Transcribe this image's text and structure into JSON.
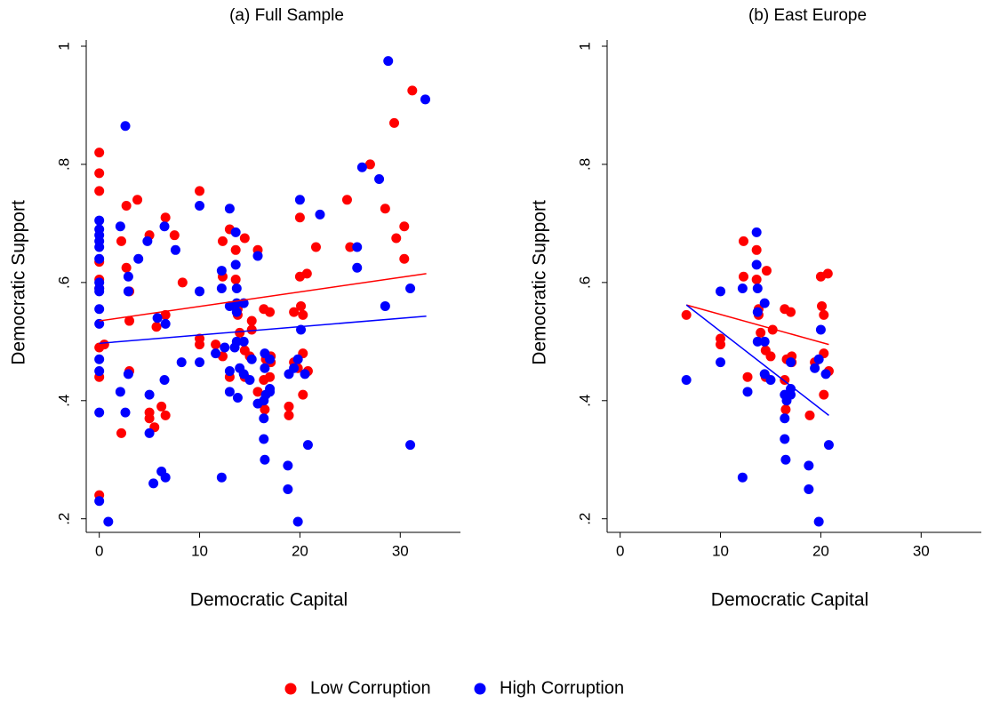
{
  "chart_data": [
    {
      "type": "scatter",
      "title": "(a) Full Sample",
      "x_label": "Democratic Capital",
      "y_label": "Democratic Support",
      "xlim": [
        -1.3,
        36
      ],
      "ylim": [
        0.177,
        1.0
      ],
      "xticks": [
        0,
        10,
        20,
        30
      ],
      "yticks": [
        {
          "value": 0.2,
          "label": ".2"
        },
        {
          "value": 0.4,
          "label": ".4"
        },
        {
          "value": 0.6,
          "label": ".6"
        },
        {
          "value": 0.8,
          "label": ".8"
        },
        1
      ],
      "series": [
        {
          "name": "Low Corruption",
          "color": "#ff0000",
          "x": [
            0,
            0,
            0,
            0,
            0,
            0,
            0,
            0,
            0,
            0.5,
            2.2,
            2.2,
            2.7,
            2.7,
            3,
            3,
            3,
            3.8,
            5,
            5,
            5,
            5.5,
            5.7,
            6.2,
            6.6,
            6.6,
            6.6,
            7.5,
            8.3,
            10,
            10,
            10,
            11.6,
            12.3,
            12.3,
            12.3,
            13,
            13,
            13.6,
            13.6,
            13.8,
            13.8,
            14,
            14.5,
            14.5,
            14.5,
            15,
            15.2,
            15.2,
            15.8,
            15.8,
            16.4,
            16.4,
            16.5,
            16.6,
            17,
            17,
            17.1,
            17.1,
            18.9,
            18.9,
            19.4,
            19.4,
            19.8,
            20,
            20,
            20.1,
            20.3,
            20.3,
            20.3,
            20.7,
            20.8,
            21.6,
            24.7,
            25,
            27,
            28.5,
            29.4,
            29.6,
            30.4,
            30.4,
            31.2
          ],
          "values": [
            0.82,
            0.785,
            0.755,
            0.635,
            0.605,
            0.59,
            0.49,
            0.44,
            0.24,
            0.495,
            0.67,
            0.345,
            0.73,
            0.625,
            0.585,
            0.535,
            0.45,
            0.74,
            0.68,
            0.38,
            0.37,
            0.355,
            0.525,
            0.39,
            0.71,
            0.545,
            0.375,
            0.68,
            0.6,
            0.755,
            0.505,
            0.495,
            0.495,
            0.67,
            0.61,
            0.475,
            0.69,
            0.44,
            0.655,
            0.605,
            0.555,
            0.545,
            0.515,
            0.675,
            0.485,
            0.44,
            0.475,
            0.52,
            0.535,
            0.655,
            0.415,
            0.555,
            0.435,
            0.385,
            0.47,
            0.55,
            0.44,
            0.465,
            0.475,
            0.39,
            0.375,
            0.55,
            0.465,
            0.455,
            0.71,
            0.61,
            0.56,
            0.41,
            0.545,
            0.48,
            0.615,
            0.45,
            0.66,
            0.74,
            0.66,
            0.8,
            0.725,
            0.87,
            0.675,
            0.64,
            0.695,
            0.925
          ]
        },
        {
          "name": "High Corruption",
          "color": "#0000ff",
          "x": [
            0,
            0,
            0,
            0,
            0,
            0,
            0,
            0,
            0,
            0,
            0,
            0,
            0,
            0,
            0,
            0.9,
            2.1,
            2.1,
            2.6,
            2.6,
            2.9,
            2.9,
            2.9,
            3.9,
            4.8,
            5,
            5,
            5.4,
            5.8,
            6.2,
            6.5,
            6.5,
            6.6,
            6.6,
            7.6,
            8.2,
            10,
            10,
            10,
            11.6,
            12.2,
            12.2,
            12.2,
            12.5,
            13,
            13,
            13,
            13,
            13.5,
            13.6,
            13.6,
            13.7,
            13.7,
            13.7,
            13.7,
            13.8,
            14,
            14.4,
            14.4,
            14.4,
            15,
            15.2,
            15.8,
            15.8,
            16.4,
            16.4,
            16.4,
            16.5,
            16.5,
            16.5,
            16.6,
            17,
            17,
            17,
            18.8,
            18.8,
            18.9,
            19.4,
            19.8,
            19.8,
            20,
            20.1,
            20.5,
            20.8,
            22,
            25.7,
            25.7,
            26.2,
            27.9,
            28.5,
            28.8,
            31,
            31,
            32.5
          ],
          "values": [
            0.705,
            0.69,
            0.68,
            0.67,
            0.66,
            0.64,
            0.6,
            0.59,
            0.585,
            0.555,
            0.53,
            0.47,
            0.45,
            0.38,
            0.23,
            0.195,
            0.695,
            0.415,
            0.865,
            0.38,
            0.61,
            0.585,
            0.445,
            0.64,
            0.67,
            0.41,
            0.345,
            0.26,
            0.54,
            0.28,
            0.695,
            0.435,
            0.27,
            0.53,
            0.655,
            0.465,
            0.73,
            0.585,
            0.465,
            0.48,
            0.62,
            0.59,
            0.27,
            0.49,
            0.725,
            0.56,
            0.45,
            0.415,
            0.49,
            0.685,
            0.63,
            0.59,
            0.565,
            0.55,
            0.5,
            0.405,
            0.455,
            0.565,
            0.5,
            0.445,
            0.435,
            0.47,
            0.645,
            0.395,
            0.4,
            0.37,
            0.335,
            0.3,
            0.455,
            0.48,
            0.41,
            0.47,
            0.42,
            0.415,
            0.29,
            0.25,
            0.445,
            0.455,
            0.47,
            0.195,
            0.74,
            0.52,
            0.445,
            0.325,
            0.715,
            0.66,
            0.625,
            0.795,
            0.775,
            0.56,
            0.975,
            0.59,
            0.325,
            0.91
          ]
        }
      ],
      "fit_lines": [
        {
          "color": "#ff0000",
          "x": [
            0,
            32.6
          ],
          "values": [
            0.535,
            0.615
          ]
        },
        {
          "color": "#0000ff",
          "x": [
            0,
            32.6
          ],
          "values": [
            0.497,
            0.543
          ]
        }
      ]
    },
    {
      "type": "scatter",
      "title": "(b) East Europe",
      "x_label": "Democratic Capital",
      "y_label": "Democratic Support",
      "xlim": [
        -1.3,
        36
      ],
      "ylim": [
        0.177,
        1.0
      ],
      "xticks": [
        0,
        10,
        20,
        30
      ],
      "yticks": [
        {
          "value": 0.2,
          "label": ".2"
        },
        {
          "value": 0.4,
          "label": ".4"
        },
        {
          "value": 0.6,
          "label": ".6"
        },
        {
          "value": 0.8,
          "label": ".8"
        },
        1
      ],
      "series": [
        {
          "color": "#ff0000",
          "x": [
            6.6,
            10,
            10,
            12.3,
            12.3,
            12.7,
            13.6,
            13.6,
            13.8,
            13.8,
            14,
            14.5,
            14.5,
            14.6,
            15,
            15.2,
            16.4,
            16.4,
            16.5,
            16.6,
            17,
            17.1,
            17.1,
            18.9,
            19.4,
            20,
            20.1,
            20.3,
            20.3,
            20.3,
            20.7,
            20.8
          ],
          "values": [
            0.545,
            0.505,
            0.495,
            0.67,
            0.61,
            0.44,
            0.655,
            0.605,
            0.555,
            0.545,
            0.515,
            0.485,
            0.44,
            0.62,
            0.475,
            0.52,
            0.555,
            0.435,
            0.385,
            0.47,
            0.55,
            0.465,
            0.475,
            0.375,
            0.465,
            0.61,
            0.56,
            0.41,
            0.545,
            0.48,
            0.615,
            0.45
          ]
        },
        {
          "color": "#0000ff",
          "x": [
            6.6,
            10,
            10,
            12.2,
            12.2,
            12.7,
            13.6,
            13.6,
            13.7,
            13.7,
            13.7,
            14.4,
            14.4,
            14.4,
            15,
            16.4,
            16.4,
            16.4,
            16.5,
            16.6,
            17,
            17,
            17,
            18.8,
            18.8,
            19.4,
            19.8,
            19.8,
            20,
            20.5,
            20.8
          ],
          "values": [
            0.435,
            0.585,
            0.465,
            0.59,
            0.27,
            0.415,
            0.685,
            0.63,
            0.59,
            0.55,
            0.5,
            0.565,
            0.5,
            0.445,
            0.435,
            0.41,
            0.37,
            0.335,
            0.3,
            0.4,
            0.42,
            0.465,
            0.41,
            0.29,
            0.25,
            0.455,
            0.47,
            0.195,
            0.52,
            0.445,
            0.325
          ]
        }
      ],
      "fit_lines": [
        {
          "color": "#ff0000",
          "x": [
            6.6,
            20.8
          ],
          "values": [
            0.562,
            0.495
          ]
        },
        {
          "color": "#0000ff",
          "x": [
            6.6,
            20.8
          ],
          "values": [
            0.562,
            0.375
          ]
        }
      ]
    }
  ]
}
